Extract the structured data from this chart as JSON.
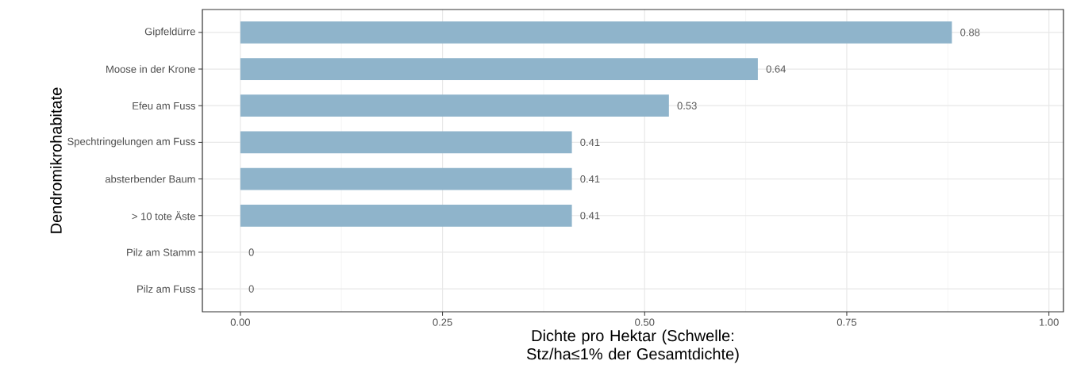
{
  "chart_data": {
    "type": "bar",
    "orientation": "horizontal",
    "categories": [
      "Gipfeldürre",
      "Moose in der Krone",
      "Efeu am Fuss",
      "Spechtringelungen am Fuss",
      "absterbender Baum",
      "> 10 tote Äste",
      "Pilz am Stamm",
      "Pilz am Fuss"
    ],
    "values": [
      0.88,
      0.64,
      0.53,
      0.41,
      0.41,
      0.41,
      0,
      0
    ],
    "color": "#8fb4cb",
    "data_labels": true,
    "xlabel": "Dichte pro Hektar (Schwelle: Stz/ha≤1% der Gesamtdichte)",
    "ylabel": "Dendromikrohabitate",
    "xlim": [
      -0.047,
      1.018
    ],
    "xticks": [
      {
        "value": 0,
        "label": "0.00"
      },
      {
        "value": 0.25,
        "label": "0.25"
      },
      {
        "value": 0.5,
        "label": "0.50"
      },
      {
        "value": 0.75,
        "label": "0.75"
      },
      {
        "value": 1,
        "label": "1.00"
      }
    ],
    "grid": true
  }
}
